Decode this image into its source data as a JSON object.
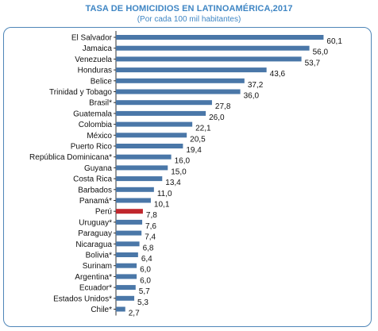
{
  "chart_data": {
    "type": "bar",
    "orientation": "horizontal",
    "title": "TASA DE HOMICIDIOS EN LATINOAMÉRICA,2017",
    "subtitle": "(Por cada 100 mil habitantes)",
    "categories": [
      "El Salvador",
      "Jamaica",
      "Venezuela",
      "Honduras",
      "Belice",
      "Trinidad y Tobago",
      "Brasil*",
      "Guatemala",
      "Colombia",
      "México",
      "Puerto Rico",
      "República Dominicana*",
      "Guyana",
      "Costa Rica",
      "Barbados",
      "Panamá*",
      "Perú",
      "Uruguay*",
      "Paraguay",
      "Nicaragua",
      "Bolivia*",
      "Surinam",
      "Argentina*",
      "Ecuador*",
      "Estados Unidos*",
      "Chile*"
    ],
    "values": [
      60.1,
      56.0,
      53.7,
      43.6,
      37.2,
      36.0,
      27.8,
      26.0,
      22.1,
      20.5,
      19.4,
      16.0,
      15.0,
      13.4,
      11.0,
      10.1,
      7.8,
      7.6,
      7.4,
      6.8,
      6.4,
      6.0,
      6.0,
      5.7,
      5.3,
      2.7
    ],
    "value_labels": [
      "60,1",
      "56,0",
      "53,7",
      "43,6",
      "37,2",
      "36,0",
      "27,8",
      "26,0",
      "22,1",
      "20,5",
      "19,4",
      "16,0",
      "15,0",
      "13,4",
      "11,0",
      "10,1",
      "7,8",
      "7,6",
      "7,4",
      "6,8",
      "6,4",
      "6,0",
      "6,0",
      "5,7",
      "5,3",
      "2,7"
    ],
    "highlight": "Perú",
    "xlim": [
      0,
      62
    ],
    "grid": false,
    "colors": {
      "bar": "#4a77a8",
      "highlight": "#c0272d",
      "title": "#3f86c4",
      "frame": "#4f86b8"
    }
  }
}
